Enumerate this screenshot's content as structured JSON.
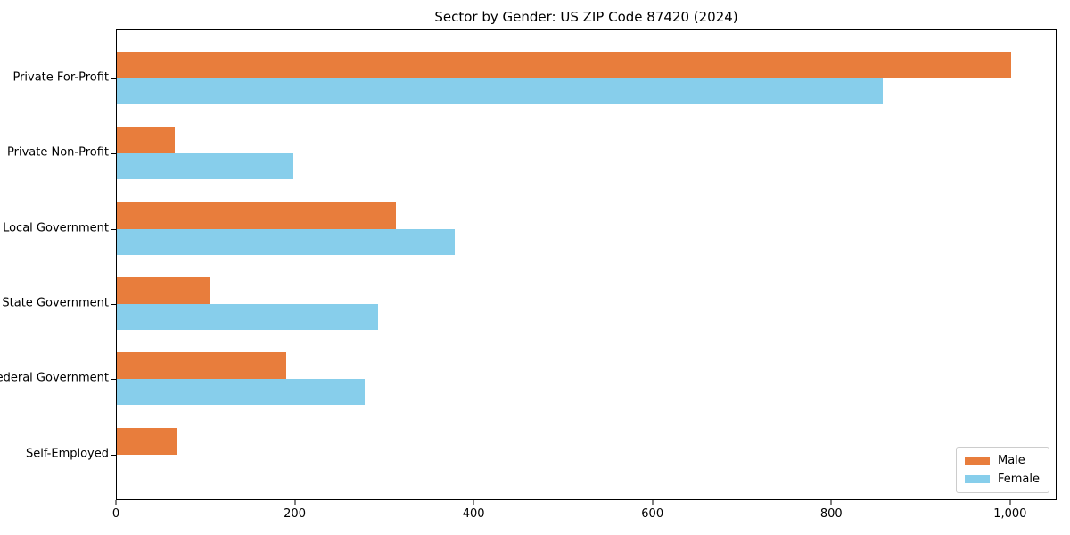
{
  "figure": {
    "background": "#ffffff",
    "axis_color": "#000000",
    "text_color": "#000000"
  },
  "chart_data": {
    "type": "bar",
    "orientation": "horizontal",
    "title": "Sector by Gender: US ZIP Code 87420 (2024)",
    "xlabel": "",
    "ylabel": "",
    "categories": [
      "Private For-Profit",
      "Private Non-Profit",
      "Local Government",
      "State Government",
      "Federal Government",
      "Self-Employed"
    ],
    "series": [
      {
        "name": "Male",
        "color": "#e87d3c",
        "values": [
          1002,
          65,
          313,
          104,
          190,
          67
        ]
      },
      {
        "name": "Female",
        "color": "#87ceeb",
        "values": [
          858,
          198,
          379,
          293,
          278,
          0
        ]
      }
    ],
    "xlim": [
      0,
      1052
    ],
    "xticks": {
      "values": [
        0,
        200,
        400,
        600,
        800,
        1000
      ],
      "labels": [
        "0",
        "200",
        "400",
        "600",
        "800",
        "1,000"
      ]
    },
    "grid": false,
    "legend": {
      "position": "lower right",
      "entries": [
        "Male",
        "Female"
      ]
    }
  }
}
